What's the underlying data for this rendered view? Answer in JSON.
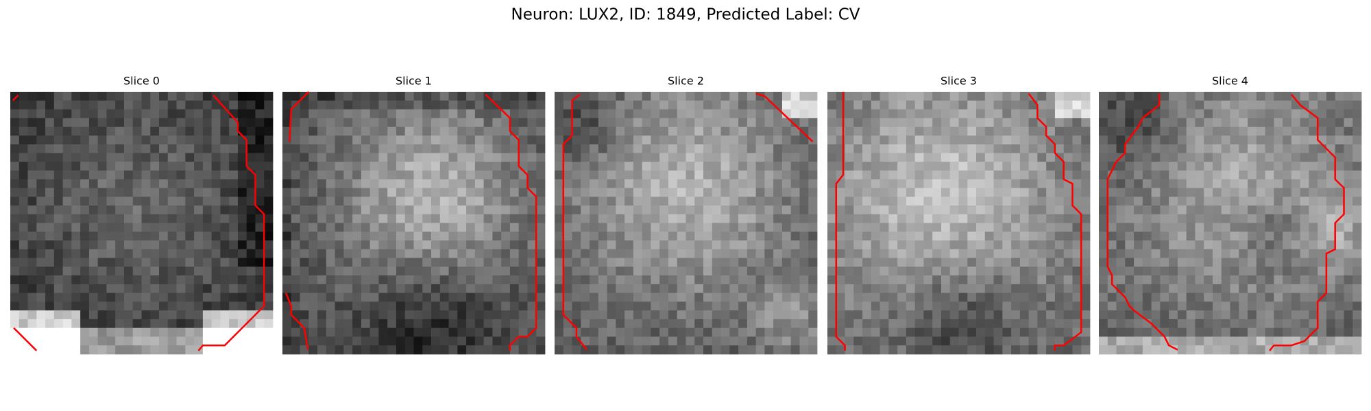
{
  "header": {
    "title": "Neuron: LUX2, ID: 1849, Predicted Label: CV"
  },
  "panels": [
    {
      "title": "Slice 0"
    },
    {
      "title": "Slice 1"
    },
    {
      "title": "Slice 2"
    },
    {
      "title": "Slice 3"
    },
    {
      "title": "Slice 4"
    }
  ]
}
